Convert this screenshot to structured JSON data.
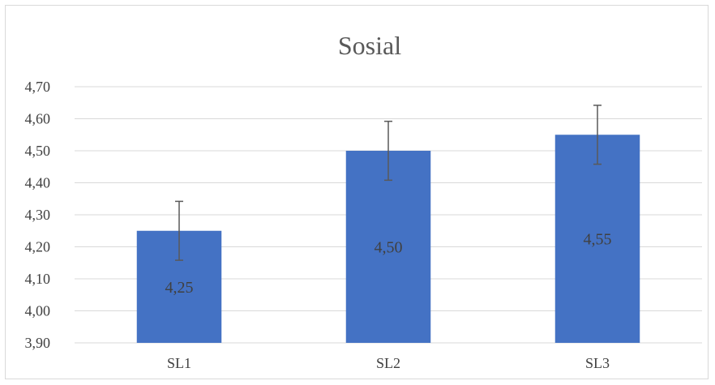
{
  "chart_data": {
    "type": "bar",
    "title": "Sosial",
    "categories": [
      "SL1",
      "SL2",
      "SL3"
    ],
    "values": [
      4.25,
      4.5,
      4.55
    ],
    "data_labels": [
      "4,25",
      "4,50",
      "4,55"
    ],
    "error_plus_minus": [
      0.092,
      0.092,
      0.092
    ],
    "ylim": [
      3.9,
      4.7
    ],
    "yticks": [
      3.9,
      4.0,
      4.1,
      4.2,
      4.3,
      4.4,
      4.5,
      4.6,
      4.7
    ],
    "ytick_labels": [
      "3,90",
      "4,00",
      "4,10",
      "4,20",
      "4,30",
      "4,40",
      "4,50",
      "4,60",
      "4,70"
    ],
    "xlabel": "",
    "ylabel": "",
    "grid": true,
    "legend": "none",
    "colors": {
      "bar": "#4472c4",
      "grid": "#d9d9d9",
      "error_bar": "#595959"
    }
  }
}
